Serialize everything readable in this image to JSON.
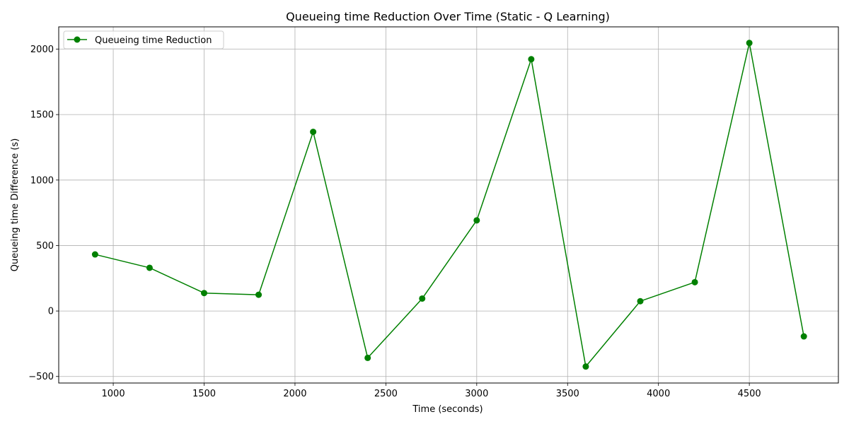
{
  "chart_data": {
    "type": "line",
    "title": "Queueing time Reduction Over Time (Static - Q Learning)",
    "xlabel": "Time (seconds)",
    "ylabel": "Queueing time Difference (s)",
    "xlim": [
      700,
      4990
    ],
    "ylim": [
      -550,
      2170
    ],
    "xticks": [
      1000,
      1500,
      2000,
      2500,
      3000,
      3500,
      4000,
      4500
    ],
    "yticks": [
      -500,
      0,
      500,
      1000,
      1500,
      2000
    ],
    "xtick_labels": [
      "1000",
      "1500",
      "2000",
      "2500",
      "3000",
      "3500",
      "4000",
      "4500"
    ],
    "ytick_labels": [
      "−500",
      "0",
      "500",
      "1000",
      "1500",
      "2000"
    ],
    "grid": true,
    "legend_position": "top-left",
    "series": [
      {
        "name": "Queueing time Reduction",
        "color": "#008000",
        "marker": "circle",
        "x": [
          900,
          1200,
          1500,
          1800,
          2100,
          2400,
          2700,
          3000,
          3300,
          3600,
          3900,
          4200,
          4500,
          4800
        ],
        "y": [
          432,
          330,
          137,
          124,
          1368,
          -358,
          95,
          692,
          1923,
          -424,
          75,
          220,
          2047,
          -194
        ]
      }
    ]
  }
}
